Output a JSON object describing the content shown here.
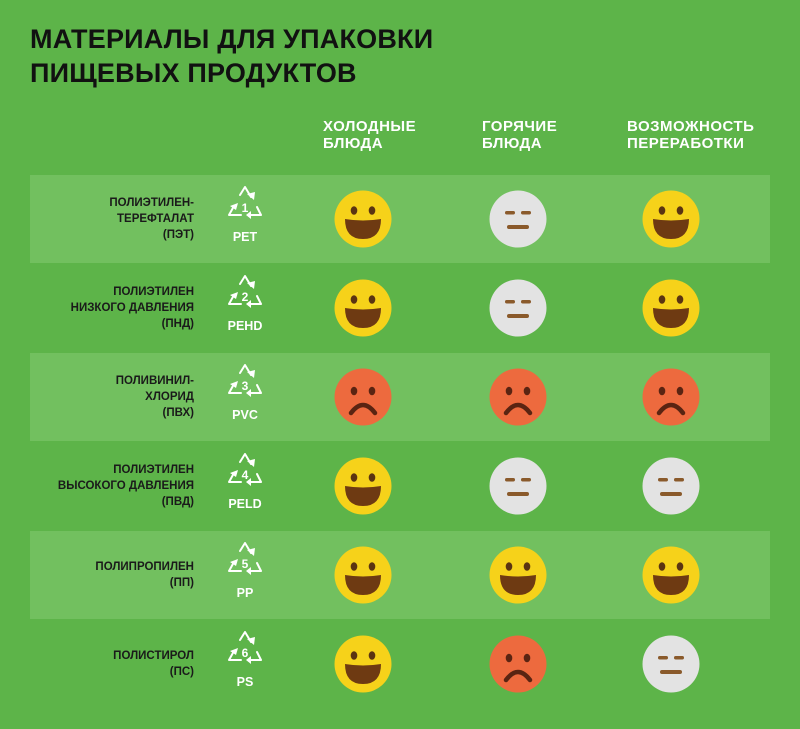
{
  "title": {
    "line1": "МАТЕРИАЛЫ ДЛЯ УПАКОВКИ",
    "line2": "ПИЩЕВЫХ ПРОДУКТОВ"
  },
  "columns": [
    {
      "line1": "ХОЛОДНЫЕ",
      "line2": "БЛЮДА"
    },
    {
      "line1": "ГОРЯЧИЕ",
      "line2": "БЛЮДА"
    },
    {
      "line1": "ВОЗМОЖНОСТЬ",
      "line2": "ПЕРЕРАБОТКИ"
    }
  ],
  "colors": {
    "background": "#5db449",
    "row_stripe": "#72c05f",
    "happy": "#f6d21a",
    "neutral": "#e3e3e3",
    "sad": "#ed6a3e"
  },
  "rows": [
    {
      "lines": [
        "ПОЛИЭТИЛЕН-",
        "ТЕРЕФТАЛАТ",
        "(ПЭТ)"
      ],
      "number": "1",
      "code": "PET",
      "ratings": [
        "happy",
        "neutral",
        "happy"
      ]
    },
    {
      "lines": [
        "ПОЛИЭТИЛЕН",
        "НИЗКОГО ДАВЛЕНИЯ",
        "(ПНД)"
      ],
      "number": "2",
      "code": "PEHD",
      "ratings": [
        "happy",
        "neutral",
        "happy"
      ]
    },
    {
      "lines": [
        "ПОЛИВИНИЛ-",
        "ХЛОРИД",
        "(ПВХ)"
      ],
      "number": "3",
      "code": "PVC",
      "ratings": [
        "sad",
        "sad",
        "sad"
      ]
    },
    {
      "lines": [
        "ПОЛИЭТИЛЕН",
        "ВЫСОКОГО ДАВЛЕНИЯ",
        "(ПВД)"
      ],
      "number": "4",
      "code": "PELD",
      "ratings": [
        "happy",
        "neutral",
        "neutral"
      ]
    },
    {
      "lines": [
        "ПОЛИПРОПИЛЕН",
        "(ПП)"
      ],
      "number": "5",
      "code": "PP",
      "ratings": [
        "happy",
        "happy",
        "happy"
      ]
    },
    {
      "lines": [
        "ПОЛИСТИРОЛ",
        "(ПС)"
      ],
      "number": "6",
      "code": "PS",
      "ratings": [
        "happy",
        "sad",
        "neutral"
      ]
    }
  ]
}
